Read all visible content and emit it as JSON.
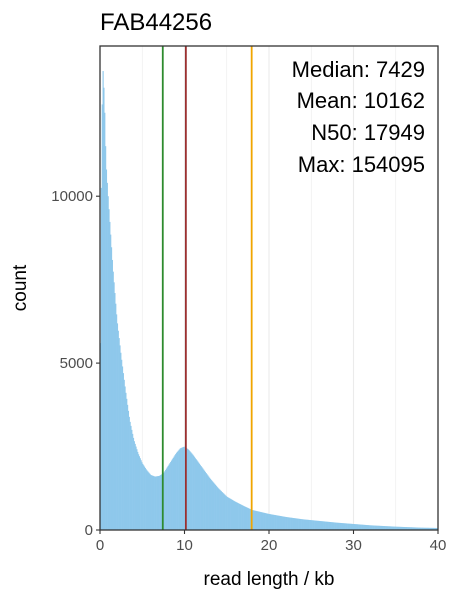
{
  "chart_data": {
    "type": "bar",
    "title": "FAB44256",
    "xlabel": "read length / kb",
    "ylabel": "count",
    "xlim": [
      0,
      40
    ],
    "ylim": [
      0,
      14500
    ],
    "x_ticks": [
      0,
      10,
      20,
      30,
      40
    ],
    "y_ticks": [
      0,
      5000,
      10000
    ],
    "grid": "vertical minor and major lines only",
    "bar_color": "#8ec8eb",
    "stats": [
      {
        "text": "Median: 7429",
        "value_kb": 7.429,
        "line_color": "#2e8b2e"
      },
      {
        "text": "Mean: 10162",
        "value_kb": 10.162,
        "line_color": "#9b3030"
      },
      {
        "text": "N50: 17949",
        "value_kb": 17.949,
        "line_color": "#f0a500"
      },
      {
        "text": "Max: 154095"
      }
    ],
    "histogram_shape_kb": [
      [
        0,
        2200
      ],
      [
        0.1,
        9000
      ],
      [
        0.3,
        14000
      ],
      [
        0.4,
        13500
      ],
      [
        0.5,
        13000
      ],
      [
        0.7,
        11000
      ],
      [
        1,
        9800
      ],
      [
        1.5,
        7900
      ],
      [
        2,
        6300
      ],
      [
        2.5,
        5200
      ],
      [
        3,
        4200
      ],
      [
        3.5,
        3300
      ],
      [
        4,
        2700
      ],
      [
        4.5,
        2300
      ],
      [
        5,
        2000
      ],
      [
        5.5,
        1800
      ],
      [
        6,
        1650
      ],
      [
        6.5,
        1600
      ],
      [
        7,
        1620
      ],
      [
        7.5,
        1700
      ],
      [
        8,
        1900
      ],
      [
        8.5,
        2100
      ],
      [
        9,
        2300
      ],
      [
        9.5,
        2450
      ],
      [
        10,
        2500
      ],
      [
        10.5,
        2400
      ],
      [
        11,
        2250
      ],
      [
        12,
        1900
      ],
      [
        13,
        1550
      ],
      [
        14,
        1250
      ],
      [
        15,
        1000
      ],
      [
        16,
        850
      ],
      [
        17,
        720
      ],
      [
        18,
        600
      ],
      [
        19,
        540
      ],
      [
        20,
        480
      ],
      [
        22,
        390
      ],
      [
        24,
        320
      ],
      [
        26,
        270
      ],
      [
        28,
        220
      ],
      [
        30,
        180
      ],
      [
        32,
        140
      ],
      [
        35,
        100
      ],
      [
        38,
        70
      ],
      [
        40,
        60
      ]
    ]
  }
}
